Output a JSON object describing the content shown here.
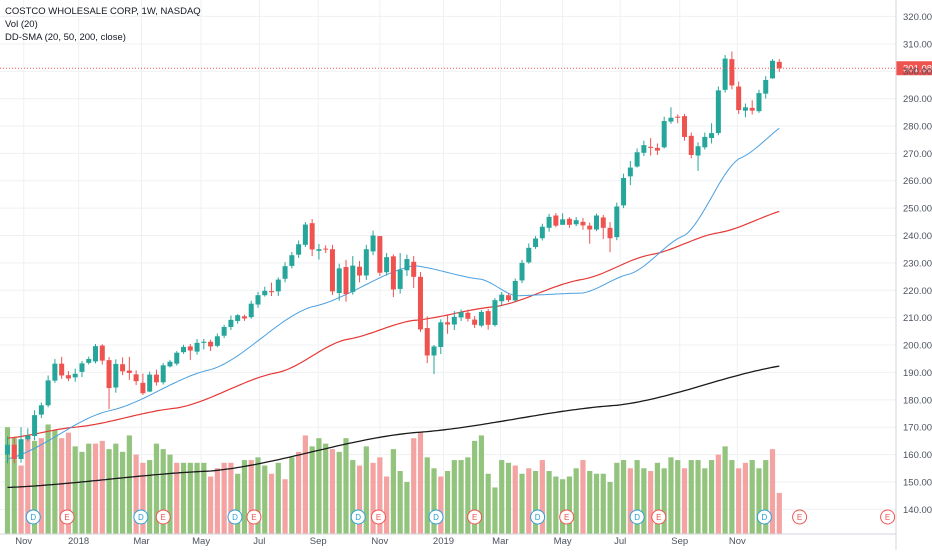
{
  "legend": {
    "symbol": "COSTCO WHOLESALE CORP, 1W, NASDAQ",
    "volume": "Vol (20)",
    "sma": "DD-SMA (20, 50, 200, close)"
  },
  "colors": {
    "up": "#26a69a",
    "down": "#ef5350",
    "vol_up": "#93c47d",
    "vol_down": "#f4a3a3",
    "sma20": "#4a9fe0",
    "sma50": "#e53935",
    "sma200": "#1a1a1a",
    "grid": "#eef0f3",
    "price_line": "#ef5350"
  },
  "chart_data": {
    "type": "candlestick",
    "title": "COSTCO WHOLESALE CORP, 1W, NASDAQ",
    "ylim": [
      131,
      326
    ],
    "y_ticks": [
      140,
      150,
      160,
      170,
      180,
      190,
      200,
      210,
      220,
      230,
      240,
      250,
      260,
      270,
      280,
      290,
      300,
      310,
      320
    ],
    "x_ticks": [
      "Nov",
      "2018",
      "Mar",
      "May",
      "Jul",
      "Sep",
      "Nov",
      "2019",
      "Mar",
      "May",
      "Jul",
      "Sep",
      "Nov"
    ],
    "last_price": "301.08",
    "candles": [
      [
        160,
        163.6,
        156.8,
        166.6
      ],
      [
        163.6,
        158.4,
        156.8,
        166.6
      ],
      [
        158.4,
        165.6,
        157.0,
        170.0
      ],
      [
        165.6,
        166.9,
        164.8,
        169.6
      ],
      [
        166.8,
        174.4,
        165.2,
        176.2
      ],
      [
        174.6,
        178.0,
        173.4,
        179.0
      ],
      [
        178.0,
        187.1,
        177.3,
        188.9
      ],
      [
        187.0,
        193.2,
        186.2,
        194.9
      ],
      [
        193.2,
        188.9,
        187.7,
        195.7
      ],
      [
        189.0,
        187.8,
        186.8,
        190.5
      ],
      [
        188.2,
        189.5,
        186.6,
        191.4
      ],
      [
        190.2,
        193.3,
        188.3,
        194.2
      ],
      [
        193.5,
        194.9,
        192.9,
        195.8
      ],
      [
        194.0,
        199.6,
        193.3,
        200.4
      ],
      [
        199.8,
        194.3,
        192.9,
        200.3
      ],
      [
        194.5,
        184.3,
        176.6,
        195.6
      ],
      [
        184.5,
        193.1,
        182.6,
        194.8
      ],
      [
        193.0,
        190.4,
        189.0,
        195.5
      ],
      [
        190.7,
        189.8,
        187.3,
        195.7
      ],
      [
        189.3,
        186.8,
        185.4,
        190.8
      ],
      [
        186.2,
        182.4,
        181.8,
        189.6
      ],
      [
        183.0,
        189.2,
        182.8,
        190.3
      ],
      [
        189.2,
        186.4,
        185.2,
        191.0
      ],
      [
        186.4,
        192.6,
        185.6,
        193.4
      ],
      [
        192.2,
        193.9,
        191.8,
        194.6
      ],
      [
        193.2,
        197.2,
        192.5,
        197.8
      ],
      [
        197.4,
        199.3,
        196.8,
        200.1
      ],
      [
        199.5,
        198.0,
        194.5,
        200.4
      ],
      [
        197.6,
        200.8,
        196.5,
        202.2
      ],
      [
        200.8,
        201.2,
        198.4,
        202.2
      ],
      [
        201.2,
        199.5,
        197.8,
        202.0
      ],
      [
        199.7,
        203.2,
        199.2,
        204.2
      ],
      [
        203.4,
        206.6,
        202.6,
        207.4
      ],
      [
        206.6,
        209.2,
        205.5,
        210.8
      ],
      [
        208.8,
        210.9,
        207.8,
        211.3
      ],
      [
        210.5,
        209.7,
        208.8,
        211.1
      ],
      [
        210.2,
        215.1,
        209.6,
        216.2
      ],
      [
        214.8,
        218.2,
        213.6,
        219.4
      ],
      [
        218.2,
        219.8,
        217.7,
        221.3
      ],
      [
        219.7,
        219.3,
        217.9,
        222.8
      ],
      [
        219.6,
        223.9,
        217.9,
        224.7
      ],
      [
        224.2,
        228.8,
        222.9,
        230.2
      ],
      [
        228.9,
        232.8,
        228.0,
        234.0
      ],
      [
        233.0,
        236.8,
        231.8,
        238.2
      ],
      [
        236.6,
        244.0,
        235.8,
        244.9
      ],
      [
        244.5,
        234.9,
        232.5,
        246.0
      ],
      [
        234.4,
        235.0,
        231.2,
        236.9
      ],
      [
        235.2,
        235.1,
        233.6,
        236.4
      ],
      [
        235.0,
        219.6,
        218.3,
        236.6
      ],
      [
        219.0,
        228.0,
        216.2,
        229.7
      ],
      [
        228.5,
        218.6,
        215.8,
        231.1
      ],
      [
        219.4,
        229.0,
        218.4,
        232.5
      ],
      [
        228.6,
        225.4,
        222.9,
        230.7
      ],
      [
        225.4,
        235.0,
        223.8,
        236.6
      ],
      [
        234.2,
        240.0,
        232.8,
        241.8
      ],
      [
        239.8,
        226.4,
        225.2,
        238.5
      ],
      [
        226.6,
        232.1,
        225.4,
        233.6
      ],
      [
        232.4,
        220.3,
        217.5,
        233.1
      ],
      [
        220.5,
        227.5,
        218.8,
        233.6
      ],
      [
        227.3,
        231.4,
        225.2,
        233.0
      ],
      [
        230.4,
        224.9,
        220.8,
        232.5
      ],
      [
        224.9,
        205.7,
        204.8,
        226.7
      ],
      [
        206.2,
        196.2,
        193.4,
        210.5
      ],
      [
        196.2,
        199.5,
        189.4,
        200.0
      ],
      [
        199.3,
        208.3,
        196.7,
        209.4
      ],
      [
        208.3,
        207.5,
        204.1,
        210.8
      ],
      [
        207.5,
        210.3,
        205.5,
        212.4
      ],
      [
        210.1,
        212.0,
        208.8,
        213.0
      ],
      [
        211.8,
        209.6,
        208.6,
        213.0
      ],
      [
        209.3,
        207.4,
        206.2,
        210.6
      ],
      [
        207.1,
        212.1,
        206.5,
        212.8
      ],
      [
        212.4,
        207.4,
        205.6,
        213.2
      ],
      [
        207.3,
        216.4,
        206.7,
        217.1
      ],
      [
        216.0,
        218.4,
        214.4,
        219.4
      ],
      [
        218.2,
        216.4,
        215.7,
        219.0
      ],
      [
        216.3,
        223.4,
        215.9,
        224.3
      ],
      [
        223.6,
        230.0,
        222.6,
        231.1
      ],
      [
        230.2,
        235.5,
        229.7,
        237.1
      ],
      [
        235.8,
        238.9,
        235.1,
        239.8
      ],
      [
        239.0,
        243.2,
        238.2,
        244.3
      ],
      [
        242.8,
        246.8,
        241.4,
        247.9
      ],
      [
        247.3,
        243.6,
        243.0,
        248.2
      ],
      [
        243.9,
        245.9,
        244.0,
        248.1
      ],
      [
        246.1,
        243.9,
        242.8,
        246.7
      ],
      [
        244.1,
        245.6,
        243.4,
        246.7
      ],
      [
        245.0,
        243.7,
        242.1,
        246.4
      ],
      [
        243.6,
        242.2,
        237.0,
        244.7
      ],
      [
        242.2,
        247.3,
        241.6,
        248.0
      ],
      [
        246.6,
        242.8,
        238.7,
        247.5
      ],
      [
        242.8,
        239.0,
        233.9,
        244.9
      ],
      [
        239.4,
        250.6,
        238.3,
        252.0
      ],
      [
        251.0,
        261.0,
        250.0,
        262.6
      ],
      [
        261.6,
        264.8,
        258.4,
        267.2
      ],
      [
        265.2,
        270.4,
        264.8,
        271.8
      ],
      [
        270.2,
        273.0,
        269.0,
        274.6
      ],
      [
        272.4,
        272.0,
        269.2,
        275.6
      ],
      [
        272.0,
        271.0,
        269.4,
        273.6
      ],
      [
        272.2,
        281.8,
        271.8,
        283.4
      ],
      [
        281.6,
        283.0,
        280.8,
        286.8
      ],
      [
        283.4,
        283.0,
        281.0,
        284.2
      ],
      [
        283.6,
        276.0,
        274.6,
        284.4
      ],
      [
        276.4,
        269.4,
        268.2,
        277.6
      ],
      [
        269.2,
        272.6,
        263.6,
        274.0
      ],
      [
        272.2,
        276.0,
        271.4,
        277.6
      ],
      [
        275.6,
        277.4,
        273.6,
        281.0
      ],
      [
        277.4,
        293.0,
        276.6,
        294.4
      ],
      [
        293.2,
        304.6,
        292.2,
        305.9
      ],
      [
        304.4,
        294.8,
        293.4,
        307.2
      ],
      [
        294.4,
        285.8,
        284.4,
        296.2
      ],
      [
        285.6,
        286.8,
        283.2,
        288.2
      ],
      [
        286.6,
        285.6,
        284.2,
        289.4
      ],
      [
        285.4,
        292.0,
        284.8,
        293.2
      ],
      [
        291.8,
        296.8,
        290.0,
        298.2
      ],
      [
        297.4,
        303.8,
        297.2,
        304.4
      ],
      [
        303.4,
        301.1,
        299.8,
        304.4
      ]
    ],
    "volume": [
      [
        170,
        true
      ],
      [
        166,
        true
      ],
      [
        156,
        false
      ],
      [
        167,
        false
      ],
      [
        165,
        true
      ],
      [
        166,
        false
      ],
      [
        171,
        true
      ],
      [
        169,
        true
      ],
      [
        166,
        false
      ],
      [
        168,
        false
      ],
      [
        163,
        true
      ],
      [
        161,
        true
      ],
      [
        164,
        true
      ],
      [
        164,
        false
      ],
      [
        165,
        false
      ],
      [
        162,
        true
      ],
      [
        164,
        true
      ],
      [
        161,
        true
      ],
      [
        167,
        true
      ],
      [
        160,
        false
      ],
      [
        157,
        false
      ],
      [
        158,
        true
      ],
      [
        164,
        true
      ],
      [
        162,
        true
      ],
      [
        160,
        true
      ],
      [
        157,
        false
      ],
      [
        157,
        true
      ],
      [
        157,
        true
      ],
      [
        157,
        true
      ],
      [
        157,
        true
      ],
      [
        152,
        false
      ],
      [
        155,
        false
      ],
      [
        157,
        false
      ],
      [
        157,
        false
      ],
      [
        153,
        true
      ],
      [
        158,
        true
      ],
      [
        158,
        false
      ],
      [
        159,
        true
      ],
      [
        156,
        true
      ],
      [
        153,
        false
      ],
      [
        157,
        true
      ],
      [
        151,
        false
      ],
      [
        159,
        true
      ],
      [
        161,
        false
      ],
      [
        167,
        false
      ],
      [
        163,
        true
      ],
      [
        166,
        true
      ],
      [
        164,
        true
      ],
      [
        162,
        false
      ],
      [
        161,
        true
      ],
      [
        166,
        true
      ],
      [
        158,
        true
      ],
      [
        156,
        false
      ],
      [
        163,
        true
      ],
      [
        157,
        false
      ],
      [
        159,
        false
      ],
      [
        152,
        false
      ],
      [
        162,
        true
      ],
      [
        154,
        true
      ],
      [
        150,
        true
      ],
      [
        166,
        false
      ],
      [
        168,
        false
      ],
      [
        159,
        true
      ],
      [
        155,
        true
      ],
      [
        152,
        false
      ],
      [
        154,
        true
      ],
      [
        158,
        true
      ],
      [
        158,
        true
      ],
      [
        159,
        true
      ],
      [
        165,
        true
      ],
      [
        167,
        true
      ],
      [
        153,
        true
      ],
      [
        148,
        true
      ],
      [
        158,
        true
      ],
      [
        157,
        true
      ],
      [
        156,
        false
      ],
      [
        153,
        true
      ],
      [
        155,
        false
      ],
      [
        154,
        true
      ],
      [
        158,
        false
      ],
      [
        154,
        true
      ],
      [
        152,
        true
      ],
      [
        151,
        true
      ],
      [
        152,
        true
      ],
      [
        155,
        true
      ],
      [
        158,
        false
      ],
      [
        154,
        true
      ],
      [
        153,
        true
      ],
      [
        153,
        true
      ],
      [
        150,
        true
      ],
      [
        157,
        true
      ],
      [
        158,
        true
      ],
      [
        155,
        false
      ],
      [
        158,
        true
      ],
      [
        155,
        true
      ],
      [
        154,
        false
      ],
      [
        157,
        true
      ],
      [
        155,
        true
      ],
      [
        159,
        true
      ],
      [
        158,
        true
      ],
      [
        155,
        false
      ],
      [
        158,
        true
      ],
      [
        158,
        true
      ],
      [
        155,
        true
      ],
      [
        158,
        true
      ],
      [
        160,
        false
      ],
      [
        163,
        true
      ],
      [
        158,
        true
      ],
      [
        155,
        false
      ],
      [
        157,
        false
      ],
      [
        158,
        true
      ],
      [
        155,
        true
      ],
      [
        158,
        true
      ],
      [
        162,
        false
      ],
      [
        146,
        false
      ]
    ],
    "sma20": [
      [
        0,
        158.4
      ],
      [
        15,
        176
      ],
      [
        30,
        191
      ],
      [
        45,
        214
      ],
      [
        60,
        229
      ],
      [
        70,
        224
      ],
      [
        75,
        218
      ],
      [
        85,
        219
      ],
      [
        92,
        226
      ],
      [
        100,
        240
      ],
      [
        108,
        268
      ],
      [
        116,
        282
      ]
    ],
    "sma50": [
      [
        0,
        166
      ],
      [
        10,
        170
      ],
      [
        25,
        177
      ],
      [
        40,
        190
      ],
      [
        50,
        202
      ],
      [
        60,
        209
      ],
      [
        72,
        214
      ],
      [
        85,
        224
      ],
      [
        95,
        233
      ],
      [
        105,
        241
      ],
      [
        116,
        250
      ]
    ],
    "sma200": [
      [
        0,
        148
      ],
      [
        30,
        154
      ],
      [
        60,
        168
      ],
      [
        90,
        178
      ],
      [
        116,
        193
      ]
    ],
    "events": [
      {
        "label": "D",
        "kind": "D"
      },
      {
        "label": "E",
        "kind": "E"
      },
      {
        "label": "D",
        "kind": "D"
      },
      {
        "label": "E",
        "kind": "E"
      },
      {
        "label": "D",
        "kind": "D"
      },
      {
        "label": "E",
        "kind": "E"
      },
      {
        "label": "D",
        "kind": "D"
      },
      {
        "label": "E",
        "kind": "E"
      },
      {
        "label": "D",
        "kind": "D"
      },
      {
        "label": "E",
        "kind": "E"
      },
      {
        "label": "D",
        "kind": "D"
      },
      {
        "label": "E",
        "kind": "E"
      },
      {
        "label": "D",
        "kind": "D"
      },
      {
        "label": "E",
        "kind": "E"
      },
      {
        "label": "D",
        "kind": "D"
      },
      {
        "label": "E",
        "kind": "E"
      },
      {
        "label": "E",
        "kind": "E"
      }
    ]
  }
}
